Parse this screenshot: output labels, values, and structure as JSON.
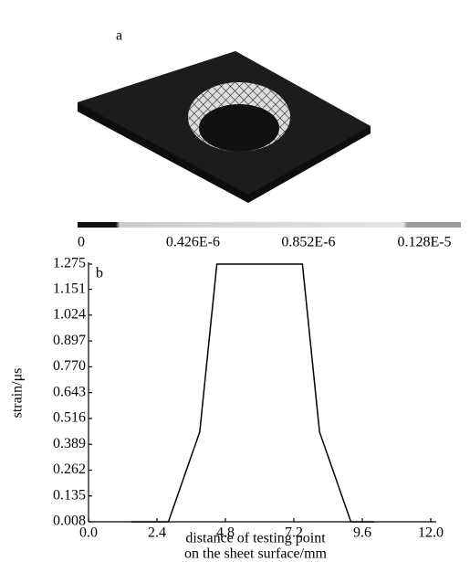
{
  "panel_a": {
    "label": "a",
    "colorbar_lim": [
      0,
      1.28e-06
    ],
    "colorbar_ticks": [
      0,
      {
        "value": 4.26e-07,
        "label": "0.426E-6"
      },
      {
        "value": 8.52e-07,
        "label": "0.852E-6"
      },
      {
        "value": 1.28e-06,
        "label": "0.128E-5"
      }
    ]
  },
  "chart_data": {
    "type": "line",
    "panel_label": "b",
    "xlabel": [
      "distance of testing point",
      "on the sheet surface/mm"
    ],
    "ylabel": "strain/μs",
    "x": [
      1.5,
      2.8,
      3.9,
      4.5,
      7.5,
      8.1,
      9.2,
      10.0
    ],
    "values": [
      0.008,
      0.008,
      0.45,
      1.275,
      1.275,
      0.45,
      0.008,
      0.008
    ],
    "color": "#000000",
    "xlim": [
      0,
      12
    ],
    "ylim": [
      0.008,
      1.275
    ],
    "xticks": [
      {
        "value": 0,
        "label": "0.0"
      },
      2.4,
      4.8,
      7.2,
      9.6,
      {
        "value": 12,
        "label": "12.0"
      }
    ],
    "yticks": [
      0.008,
      0.135,
      0.262,
      0.389,
      0.516,
      0.643,
      {
        "value": 0.77,
        "label": "0.770"
      },
      0.897,
      1.024,
      1.151,
      1.275
    ]
  }
}
